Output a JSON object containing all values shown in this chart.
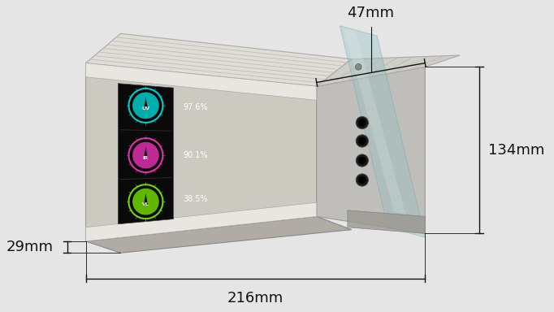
{
  "bg_color": "#e5e5e5",
  "dimensions": {
    "width_label": "216mm",
    "height_label": "134mm",
    "depth_label": "47mm",
    "thickness_label": "29mm"
  },
  "annotation_fontsize": 13,
  "line_color": "#111111",
  "device": {
    "front_color": "#ccc9c0",
    "front_light": "#dedad2",
    "top_color": "#e0ddd6",
    "right_color": "#b8b5ae",
    "bottom_color": "#b0aca5",
    "strip_color": "#d2d0ca",
    "strip_light": "#e8e6e0",
    "screen_color": "#0a0a0a",
    "glass_color": "#90c0c0",
    "glass_alpha": 0.38,
    "hole_color": "#1a1a1a",
    "bracket_color": "#9a9890",
    "mount_color": "#c0bebb",
    "mount_top": "#d0cec8"
  }
}
